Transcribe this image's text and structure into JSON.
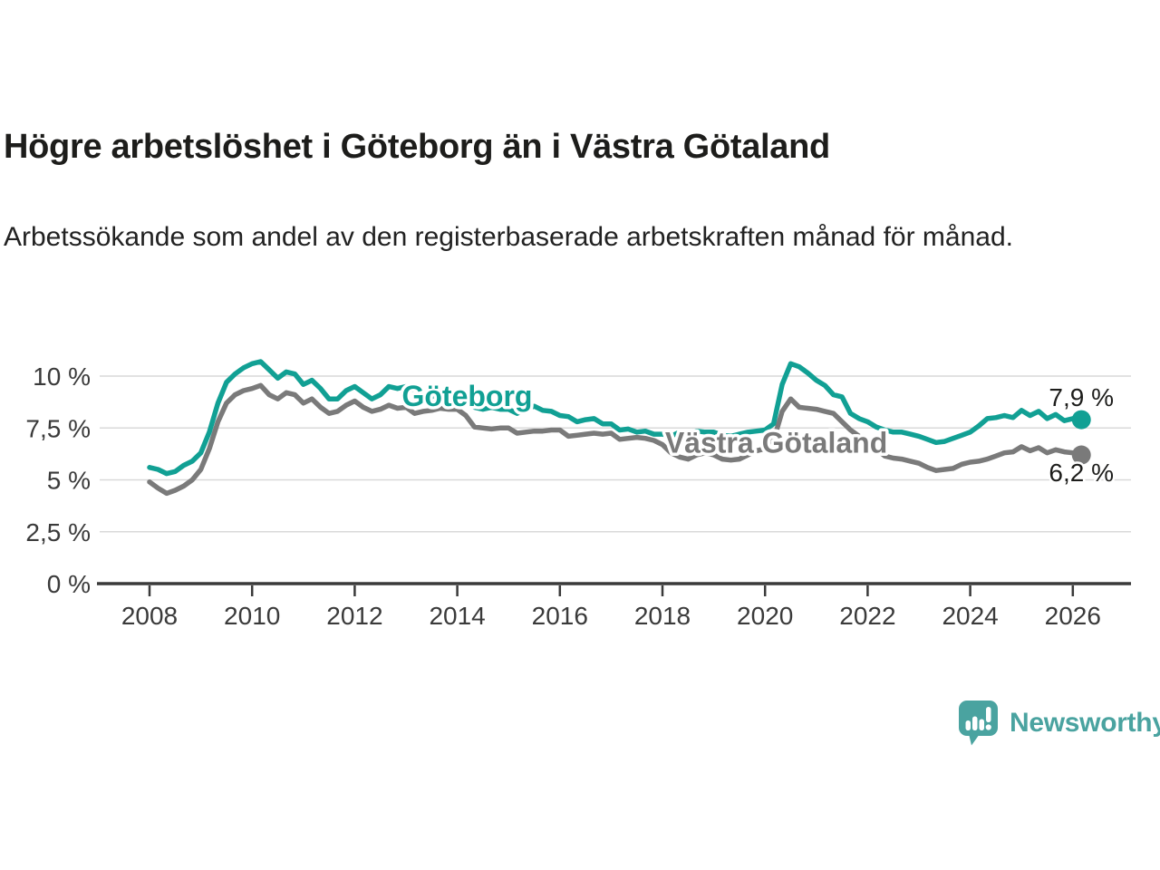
{
  "header": {
    "title": "Högre arbetslöshet i Göteborg än i Västra Götaland",
    "subtitle": "Arbetssökande som andel av den registerbaserade arbetskraften månad för månad."
  },
  "chart_data": {
    "type": "line",
    "title": "Högre arbetslöshet i Göteborg än i Västra Götaland",
    "subtitle": "Arbetssökande som andel av den registerbaserade arbetskraften månad för månad.",
    "unit": "%",
    "grid": true,
    "legend_position": "inline-labels",
    "xlim": [
      2008,
      2027
    ],
    "ylim": [
      0,
      11
    ],
    "x_start": 2008,
    "x_step": 0.1666667,
    "x_ticks": [
      {
        "value": 2008,
        "label": "2008"
      },
      {
        "value": 2010,
        "label": "2010"
      },
      {
        "value": 2012,
        "label": "2012"
      },
      {
        "value": 2014,
        "label": "2014"
      },
      {
        "value": 2016,
        "label": "2016"
      },
      {
        "value": 2018,
        "label": "2018"
      },
      {
        "value": 2020,
        "label": "2020"
      },
      {
        "value": 2022,
        "label": "2022"
      },
      {
        "value": 2024,
        "label": "2024"
      },
      {
        "value": 2026,
        "label": "2026"
      }
    ],
    "y_ticks": [
      {
        "value": 0,
        "label": "0 %"
      },
      {
        "value": 2.5,
        "label": "2,5 %"
      },
      {
        "value": 5,
        "label": "5 %"
      },
      {
        "value": 7.5,
        "label": "7,5 %"
      },
      {
        "value": 10,
        "label": "10 %"
      }
    ],
    "colors": {
      "grid": "#d9d9d9",
      "axis": "#3a3a3a",
      "tick_text": "#3a3a3a",
      "value_label_text": "#1d1d1b"
    },
    "series": [
      {
        "id": "goteborg",
        "name": "Göteborg",
        "color": "#11a094",
        "end_label": "7,9 %",
        "end_label_position": "above",
        "label_anchor": {
          "x": 2012.92,
          "y": 8.55
        },
        "y": [
          5.6,
          5.5,
          5.3,
          5.4,
          5.7,
          5.9,
          6.3,
          7.3,
          8.7,
          9.7,
          10.1,
          10.4,
          10.6,
          10.7,
          10.3,
          9.9,
          10.2,
          10.1,
          9.6,
          9.8,
          9.4,
          8.9,
          8.9,
          9.3,
          9.5,
          9.2,
          8.9,
          9.1,
          9.5,
          9.4,
          9.5,
          9.3,
          9.1,
          9.0,
          9.2,
          9.1,
          9.0,
          8.7,
          8.5,
          8.4,
          8.5,
          8.4,
          8.4,
          8.2,
          8.4,
          8.55,
          8.35,
          8.3,
          8.1,
          8.05,
          7.8,
          7.9,
          7.95,
          7.7,
          7.7,
          7.4,
          7.45,
          7.3,
          7.35,
          7.2,
          7.2,
          7.1,
          7.3,
          7.25,
          7.35,
          7.3,
          7.3,
          7.15,
          7.1,
          7.2,
          7.3,
          7.35,
          7.4,
          7.7,
          9.6,
          10.6,
          10.45,
          10.15,
          9.8,
          9.55,
          9.1,
          9.0,
          8.2,
          7.95,
          7.8,
          7.55,
          7.4,
          7.3,
          7.3,
          7.2,
          7.1,
          6.95,
          6.8,
          6.85,
          7.0,
          7.15,
          7.3,
          7.6,
          7.95,
          8.0,
          8.1,
          8.0,
          8.35,
          8.1,
          8.3,
          7.95,
          8.15,
          7.85,
          7.95,
          7.9
        ]
      },
      {
        "id": "vastra-gotaland",
        "name": "Västra Götaland",
        "color": "#7a7a7a",
        "end_label": "6,2 %",
        "end_label_position": "below",
        "label_anchor": {
          "x": 2018.05,
          "y": 6.3
        },
        "y": [
          4.9,
          4.6,
          4.35,
          4.5,
          4.7,
          5.0,
          5.5,
          6.5,
          7.8,
          8.7,
          9.1,
          9.3,
          9.4,
          9.55,
          9.1,
          8.9,
          9.2,
          9.1,
          8.7,
          8.9,
          8.5,
          8.2,
          8.3,
          8.6,
          8.8,
          8.5,
          8.3,
          8.4,
          8.6,
          8.45,
          8.5,
          8.2,
          8.3,
          8.35,
          8.45,
          8.4,
          8.4,
          8.1,
          7.55,
          7.5,
          7.45,
          7.5,
          7.5,
          7.25,
          7.3,
          7.35,
          7.35,
          7.4,
          7.4,
          7.1,
          7.15,
          7.2,
          7.25,
          7.2,
          7.25,
          6.95,
          7.0,
          7.05,
          7.0,
          6.9,
          6.7,
          6.3,
          6.1,
          6.0,
          6.2,
          6.3,
          6.2,
          6.0,
          5.95,
          6.0,
          6.2,
          6.4,
          6.5,
          6.9,
          8.3,
          8.9,
          8.5,
          8.45,
          8.4,
          8.3,
          8.2,
          7.8,
          7.4,
          7.1,
          6.9,
          6.5,
          6.15,
          6.05,
          6.0,
          5.9,
          5.8,
          5.6,
          5.45,
          5.5,
          5.55,
          5.75,
          5.85,
          5.9,
          6.0,
          6.15,
          6.3,
          6.35,
          6.6,
          6.4,
          6.55,
          6.3,
          6.45,
          6.35,
          6.3,
          6.2
        ]
      }
    ]
  },
  "footer": {
    "brand": "Newsworthy",
    "brand_color": "#4aa3a0",
    "logo_icon": "bar-chart-speech-bubble"
  }
}
